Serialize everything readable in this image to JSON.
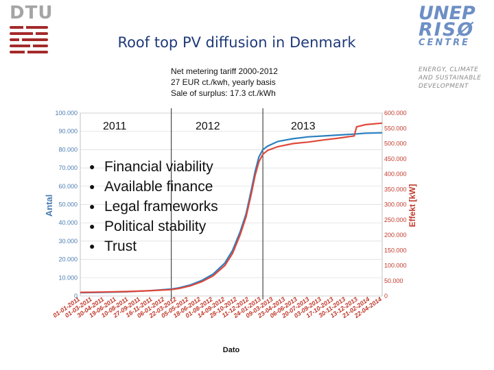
{
  "header": {
    "title": "Roof top PV diffusion in Denmark",
    "dtu_logo_text": "DTU",
    "unep_line1": "UNEP",
    "unep_line2": "RISØ",
    "unep_line3": "CENTRE",
    "unep_sub": [
      "ENERGY, CLIMATE",
      "AND SUSTAINABLE",
      "DEVELOPMENT"
    ]
  },
  "note": {
    "line1": "Net metering tariff 2000-2012",
    "line2": "27 EUR ct./kwh, yearly basis",
    "line3": "Sale of surplus: 17.3 ct./kWh"
  },
  "years": [
    "2011",
    "2012",
    "2013"
  ],
  "bullets": [
    "Financial viability",
    "Available finance",
    "Legal frameworks",
    "Political stability",
    "Trust"
  ],
  "colors": {
    "blue": "#2a7fc0",
    "red": "#e0473a",
    "title": "#1f3a7a",
    "grid": "#d9d9d9"
  },
  "chart_data": {
    "type": "line",
    "title": "",
    "xlabel": "Dato",
    "ylabel": "Antal",
    "ylabel_right": "Effekt [kW]",
    "ylim": [
      0,
      100000
    ],
    "ylim_right": [
      0,
      600000
    ],
    "y_ticks": [
      "0",
      "10.000",
      "20.000",
      "30.000",
      "40.000",
      "50.000",
      "60.000",
      "70.000",
      "80.000",
      "90.000",
      "100.000"
    ],
    "y_ticks_right": [
      "0",
      "50.000",
      "100.000",
      "150.000",
      "200.000",
      "250.000",
      "300.000",
      "350.000",
      "400.000",
      "450.000",
      "500.000",
      "550.000",
      "600.000"
    ],
    "x_ticks": [
      "01-01-2011",
      "01-03-2011",
      "30-04-2011",
      "19-06-2011",
      "10-08-2011",
      "27-09-2011",
      "16-11-2011",
      "06-01-2012",
      "22-03-2012",
      "05-05-2012",
      "18-06-2012",
      "01-08-2012",
      "14-09-2012",
      "28-10-2012",
      "11-12-2012",
      "24-01-2013",
      "09-03-2013",
      "23-04-2013",
      "06-06-2013",
      "20-07-2013",
      "03-09-2013",
      "17-10-2013",
      "30-11-2013",
      "13-12-2013",
      "21-02-2014",
      "22-04-2014"
    ],
    "year_markers": [
      "2011-12-31",
      "2012-12-31"
    ],
    "series": [
      {
        "name": "Antal",
        "axis": "left",
        "color": "#2a7fc0",
        "points": [
          [
            "2011-01-01",
            1800
          ],
          [
            "2011-04-01",
            2000
          ],
          [
            "2011-07-01",
            2300
          ],
          [
            "2011-10-01",
            2900
          ],
          [
            "2011-12-31",
            3800
          ],
          [
            "2012-02-01",
            4500
          ],
          [
            "2012-03-15",
            6000
          ],
          [
            "2012-05-01",
            8500
          ],
          [
            "2012-06-15",
            12000
          ],
          [
            "2012-08-01",
            18000
          ],
          [
            "2012-09-01",
            25000
          ],
          [
            "2012-10-01",
            35000
          ],
          [
            "2012-10-25",
            45000
          ],
          [
            "2012-11-15",
            58000
          ],
          [
            "2012-11-30",
            68000
          ],
          [
            "2012-12-15",
            76000
          ],
          [
            "2012-12-31",
            80000
          ],
          [
            "2013-01-20",
            82000
          ],
          [
            "2013-03-01",
            84500
          ],
          [
            "2013-05-01",
            86000
          ],
          [
            "2013-07-01",
            87000
          ],
          [
            "2013-09-01",
            87500
          ],
          [
            "2013-11-01",
            88000
          ],
          [
            "2013-12-31",
            88500
          ],
          [
            "2014-02-15",
            89000
          ],
          [
            "2014-04-22",
            89200
          ]
        ]
      },
      {
        "name": "Effekt [kW]",
        "axis": "right",
        "color": "#e0473a",
        "points": [
          [
            "2011-01-01",
            12000
          ],
          [
            "2011-04-01",
            13000
          ],
          [
            "2011-07-01",
            14500
          ],
          [
            "2011-10-01",
            17000
          ],
          [
            "2011-12-31",
            21000
          ],
          [
            "2012-02-01",
            25000
          ],
          [
            "2012-03-15",
            33000
          ],
          [
            "2012-05-01",
            47000
          ],
          [
            "2012-06-15",
            66000
          ],
          [
            "2012-08-01",
            100000
          ],
          [
            "2012-09-01",
            140000
          ],
          [
            "2012-10-01",
            200000
          ],
          [
            "2012-10-25",
            260000
          ],
          [
            "2012-11-15",
            335000
          ],
          [
            "2012-11-30",
            395000
          ],
          [
            "2012-12-15",
            440000
          ],
          [
            "2012-12-31",
            465000
          ],
          [
            "2013-01-20",
            478000
          ],
          [
            "2013-03-01",
            490000
          ],
          [
            "2013-05-01",
            500000
          ],
          [
            "2013-07-01",
            505000
          ],
          [
            "2013-09-01",
            512000
          ],
          [
            "2013-11-01",
            518000
          ],
          [
            "2013-12-31",
            525000
          ],
          [
            "2014-01-10",
            555000
          ],
          [
            "2014-02-15",
            562000
          ],
          [
            "2014-04-22",
            567000
          ]
        ]
      }
    ]
  }
}
